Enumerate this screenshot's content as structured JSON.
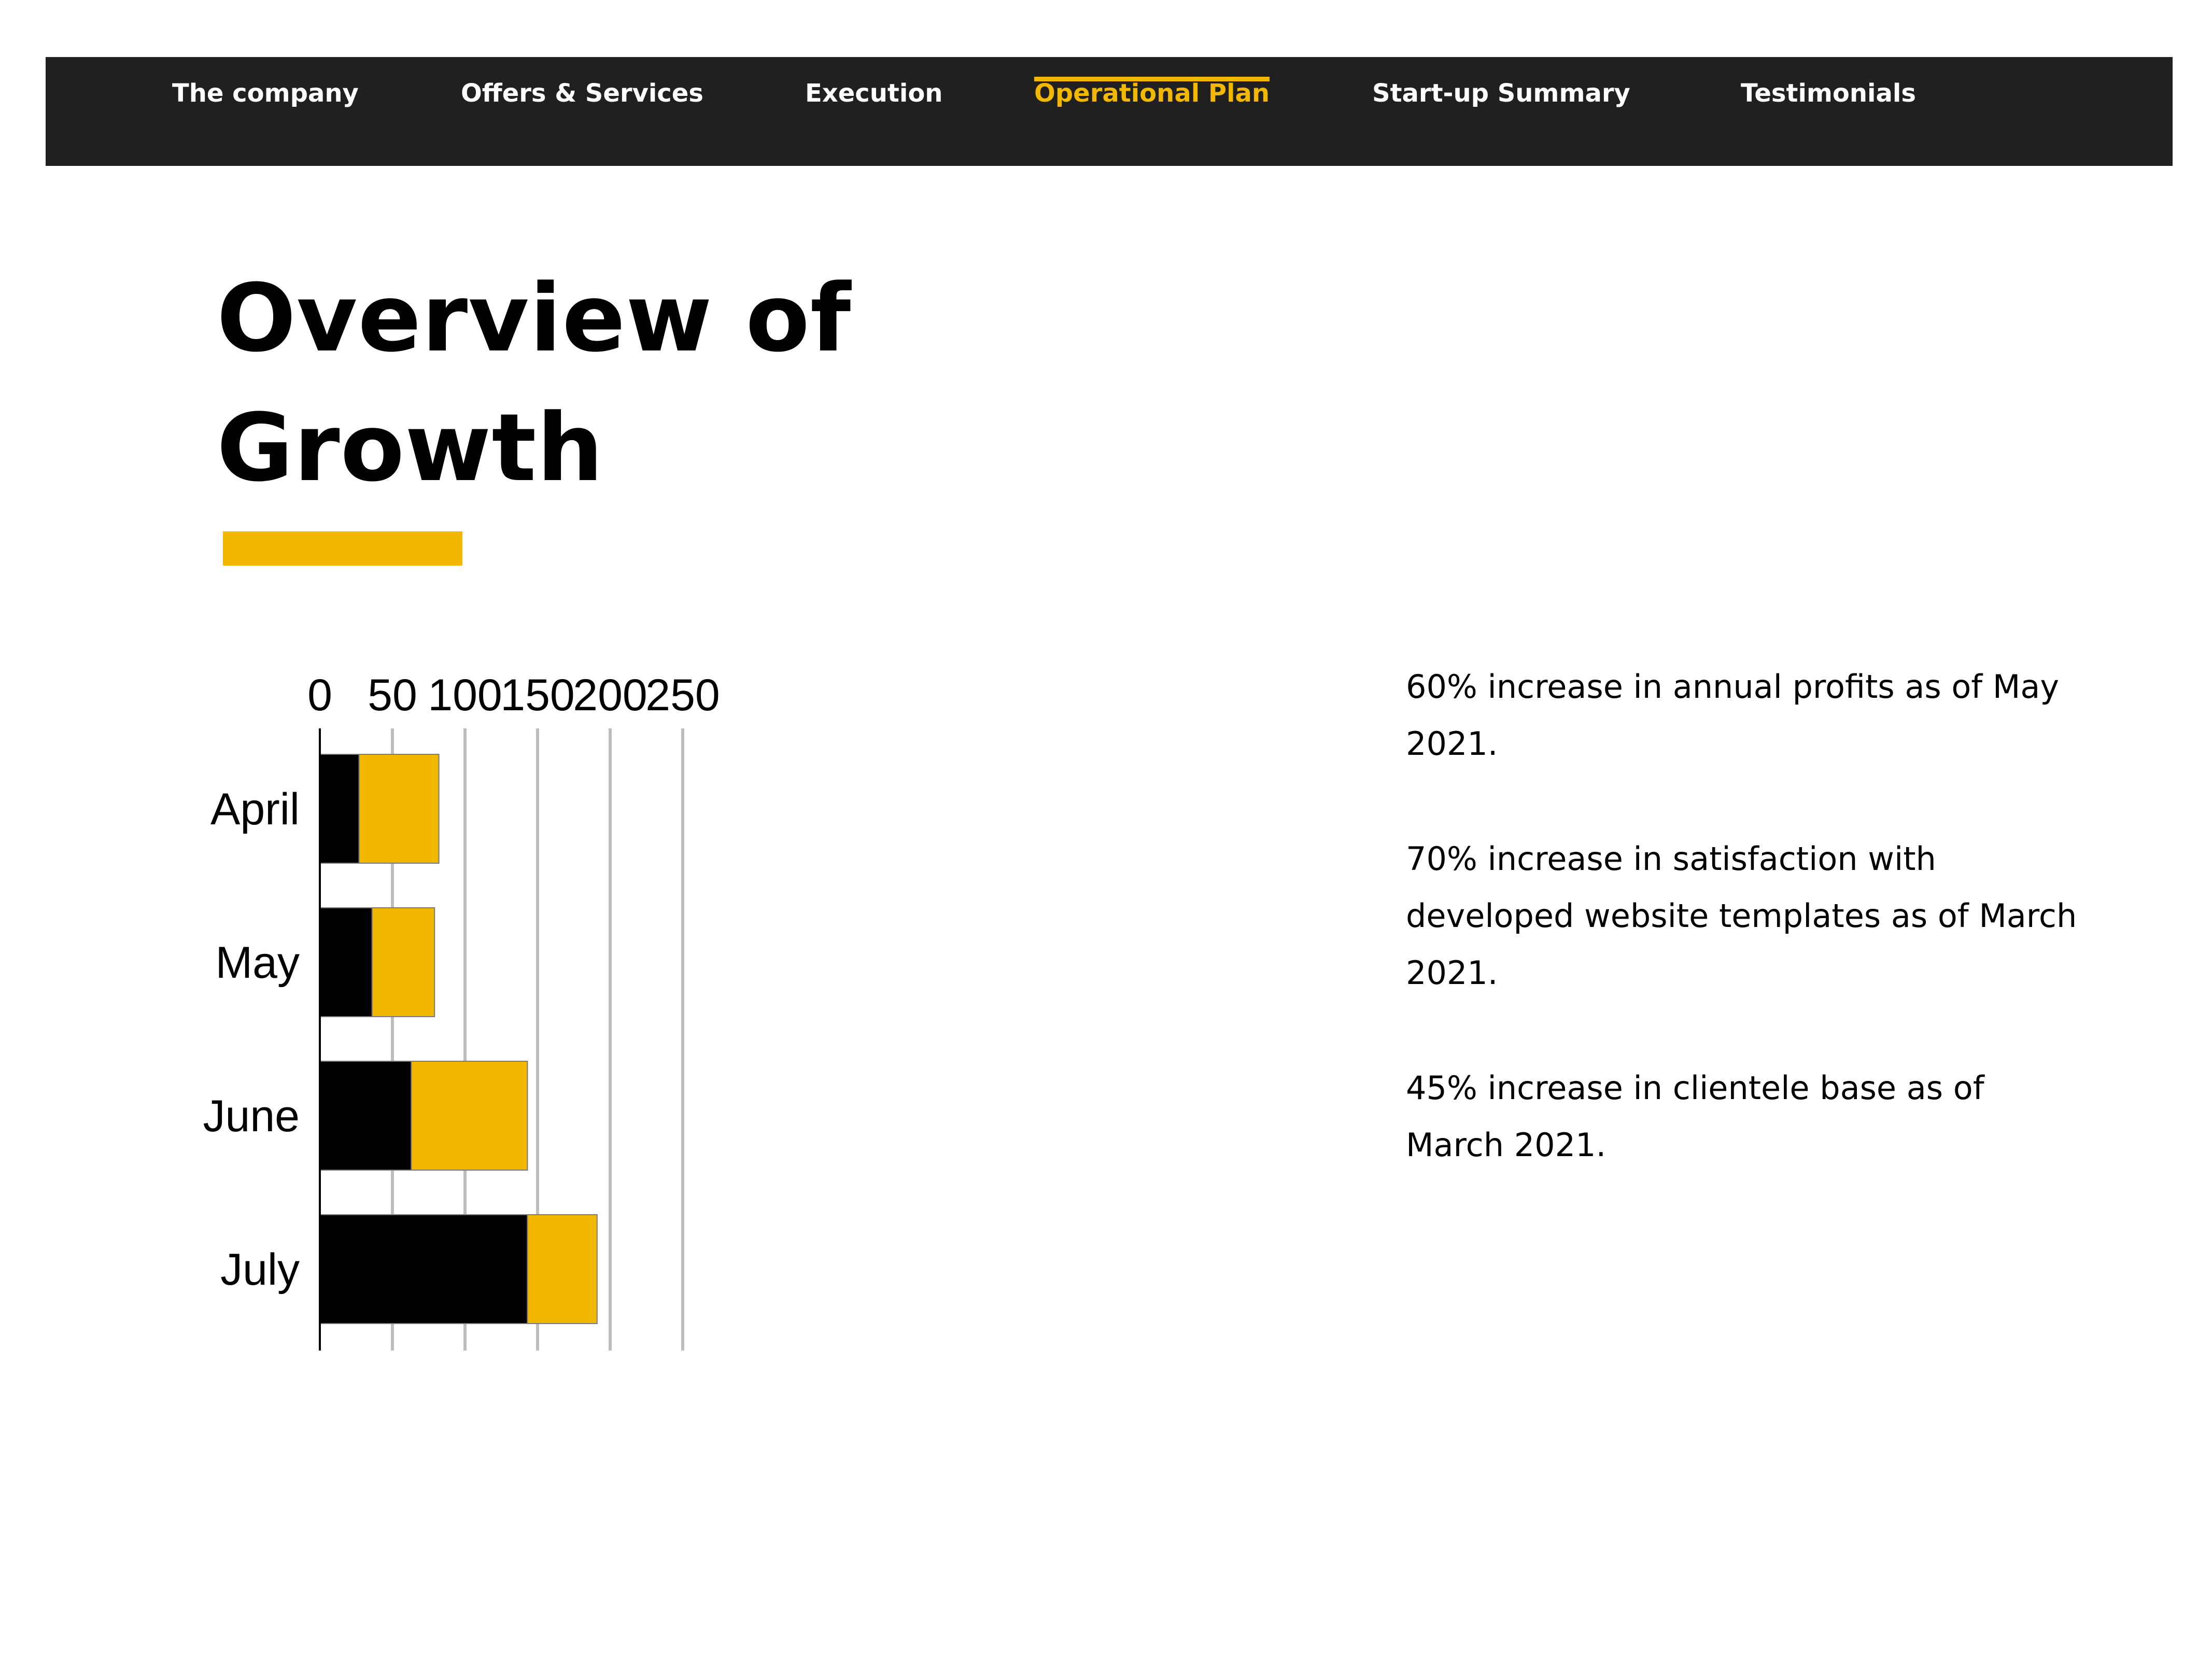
{
  "nav": {
    "items": [
      {
        "label": "The company",
        "active": false
      },
      {
        "label": "Offers & Services",
        "active": false
      },
      {
        "label": "Execution",
        "active": false
      },
      {
        "label": "Operational Plan",
        "active": true
      },
      {
        "label": "Start-up Summary",
        "active": false
      },
      {
        "label": "Testimonials",
        "active": false
      }
    ]
  },
  "page": {
    "title_line1": "Overview of",
    "title_line2": "Growth"
  },
  "stats": [
    "60% increase in annual profits as of May 2021.",
    "70% increase in satisfaction with developed website templates as of March 2021.",
    "45% increase in clientele base as of March 2021."
  ],
  "colors": {
    "accent": "#f2b800",
    "navbar": "#202020",
    "series_black": "#000000",
    "series_yellow": "#f2b800"
  },
  "chart_data": {
    "type": "bar",
    "orientation": "horizontal",
    "stacked": true,
    "categories": [
      "April",
      "May",
      "June",
      "July"
    ],
    "series": [
      {
        "values": [
          27,
          36,
          63,
          143
        ],
        "color": "#000000"
      },
      {
        "values": [
          55,
          43,
          80,
          48
        ],
        "color": "#f2b800"
      }
    ],
    "xlim": [
      0,
      250
    ],
    "xticks": [
      0,
      50,
      100,
      150,
      200,
      250
    ],
    "xaxis_position": "top",
    "grid": true,
    "legend": "none",
    "title": "",
    "xlabel": "",
    "ylabel": ""
  }
}
